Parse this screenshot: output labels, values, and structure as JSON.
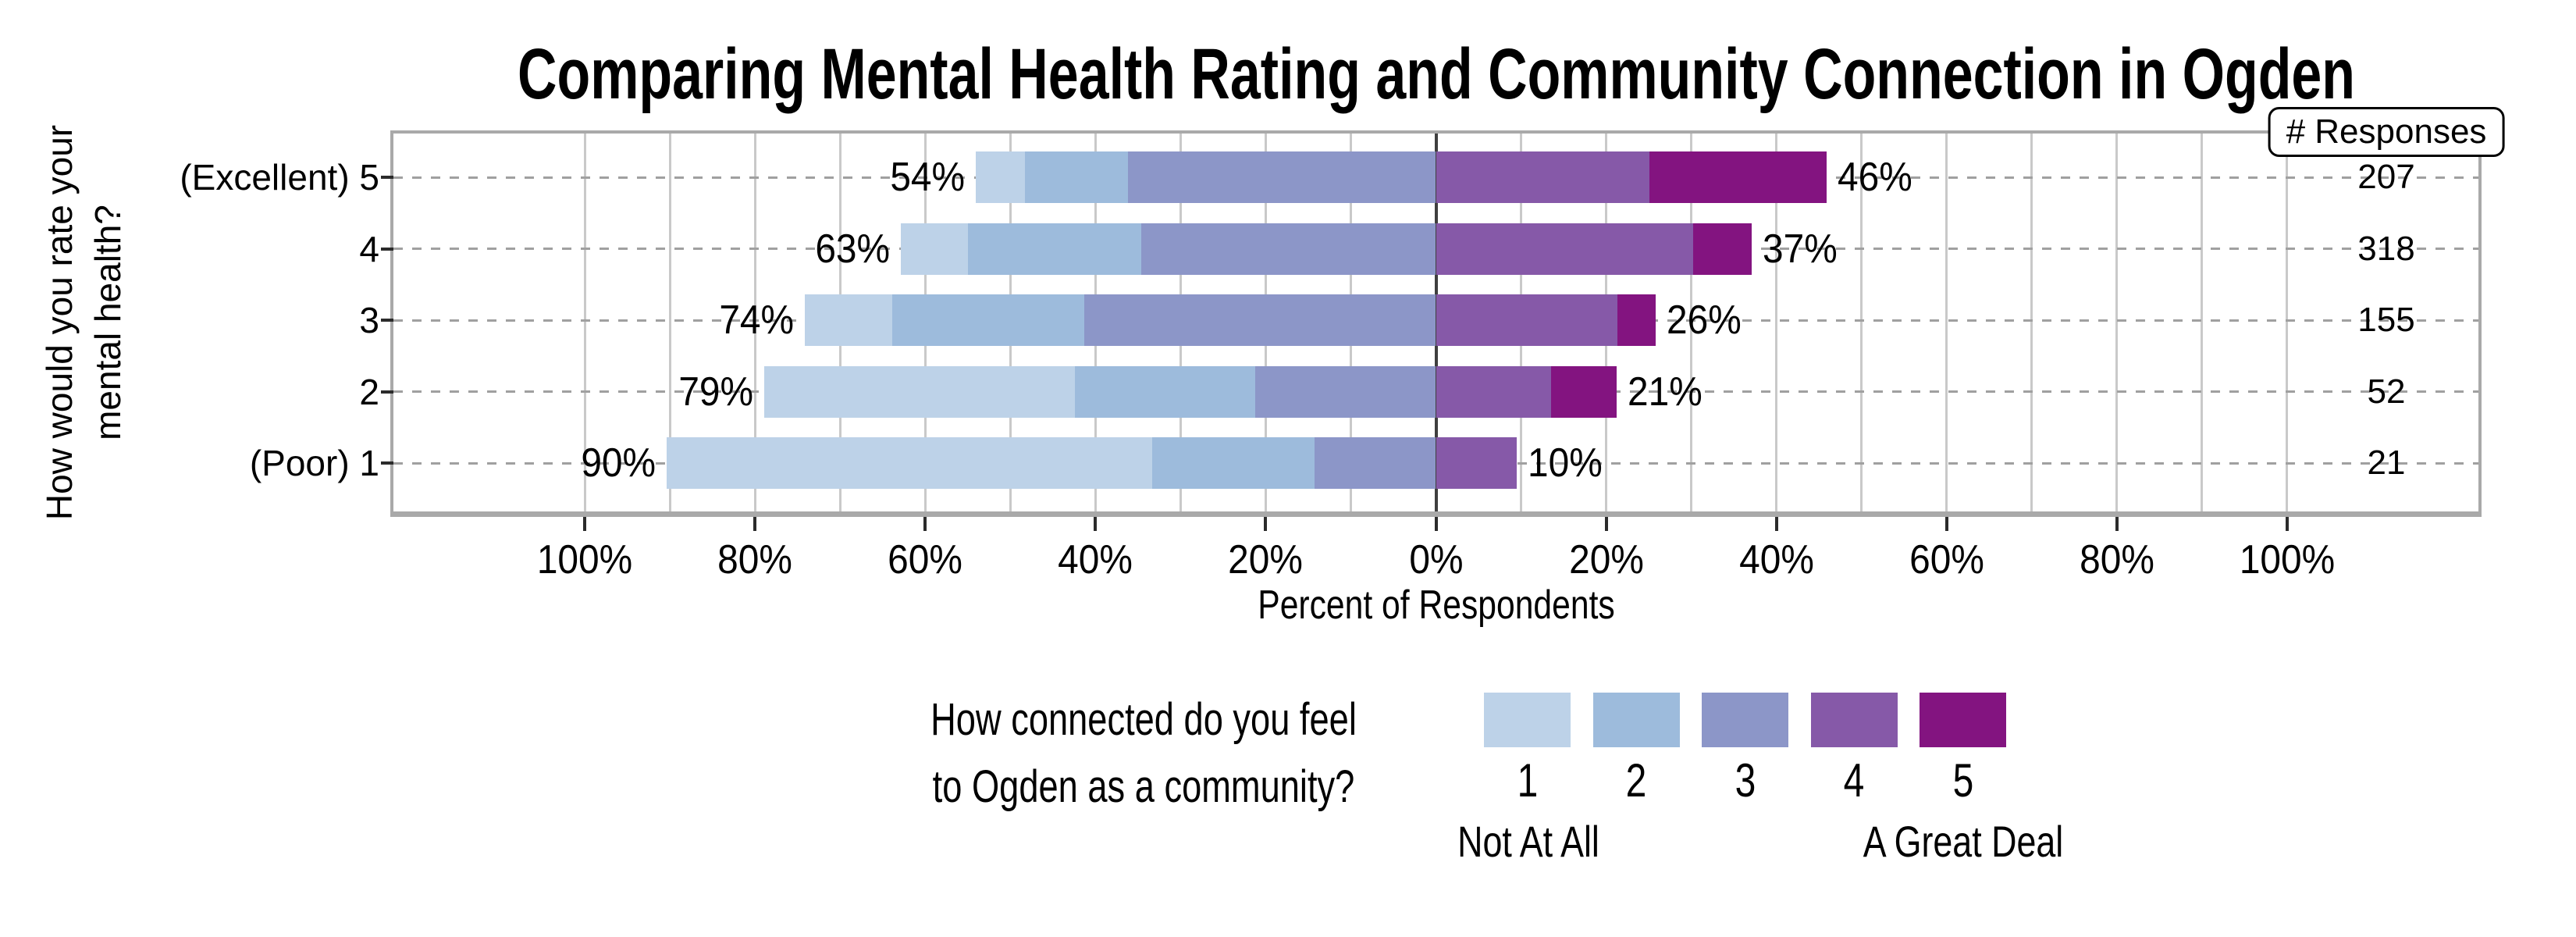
{
  "chart_data": {
    "type": "bar",
    "variant": "diverging-stacked-horizontal",
    "title": "Comparing Mental Health Rating and Community Connection in Ogden",
    "xlabel": "Percent of Respondents",
    "ylabel": "How would you rate your mental health?",
    "ylabel_lines": [
      "How would you rate your",
      "mental health?"
    ],
    "responses_header": "# Responses",
    "xlim": [
      -122.5,
      122.5
    ],
    "x_gridline_step": 10,
    "x_ticks": [
      {
        "value": -100,
        "label": "100%"
      },
      {
        "value": -80,
        "label": "80%"
      },
      {
        "value": -60,
        "label": "60%"
      },
      {
        "value": -40,
        "label": "40%"
      },
      {
        "value": -20,
        "label": "20%"
      },
      {
        "value": 0,
        "label": "0%"
      },
      {
        "value": 20,
        "label": "20%"
      },
      {
        "value": 40,
        "label": "40%"
      },
      {
        "value": 60,
        "label": "60%"
      },
      {
        "value": 80,
        "label": "80%"
      },
      {
        "value": 100,
        "label": "100%"
      }
    ],
    "grid": true,
    "colors": [
      "#bdd2e8",
      "#9dbbdc",
      "#8c96c8",
      "#8659a8",
      "#831480"
    ],
    "left_categories": [
      "1",
      "2",
      "3"
    ],
    "right_categories": [
      "4",
      "5"
    ],
    "rows": [
      {
        "label": "(Excellent) 5",
        "responses": "207",
        "left_label": "54%",
        "right_label": "46%",
        "segments_pct": [
          5.8,
          12.1,
          36.2,
          25.1,
          20.8
        ]
      },
      {
        "label": "4",
        "responses": "318",
        "left_label": "63%",
        "right_label": "37%",
        "segments_pct": [
          7.9,
          20.4,
          34.6,
          30.2,
          6.9
        ]
      },
      {
        "label": "3",
        "responses": "155",
        "left_label": "74%",
        "right_label": "26%",
        "segments_pct": [
          10.3,
          22.6,
          41.3,
          21.3,
          4.5
        ]
      },
      {
        "label": "2",
        "responses": "52",
        "left_label": "79%",
        "right_label": "21%",
        "segments_pct": [
          36.5,
          21.2,
          21.2,
          13.5,
          7.7
        ]
      },
      {
        "label": "(Poor) 1",
        "responses": "21",
        "left_label": "90%",
        "right_label": "10%",
        "segments_pct": [
          57.1,
          19.0,
          14.3,
          9.5,
          0
        ]
      }
    ],
    "legend": {
      "title_lines": [
        "How connected do you feel",
        "to Ogden as a community?"
      ],
      "items": [
        {
          "value": "1",
          "color": "#bdd2e8"
        },
        {
          "value": "2",
          "color": "#9dbbdc"
        },
        {
          "value": "3",
          "color": "#8c96c8"
        },
        {
          "value": "4",
          "color": "#8659a8"
        },
        {
          "value": "5",
          "color": "#831480"
        }
      ],
      "low_label": "Not At All",
      "high_label": "A Great Deal",
      "position": "bottom"
    }
  }
}
